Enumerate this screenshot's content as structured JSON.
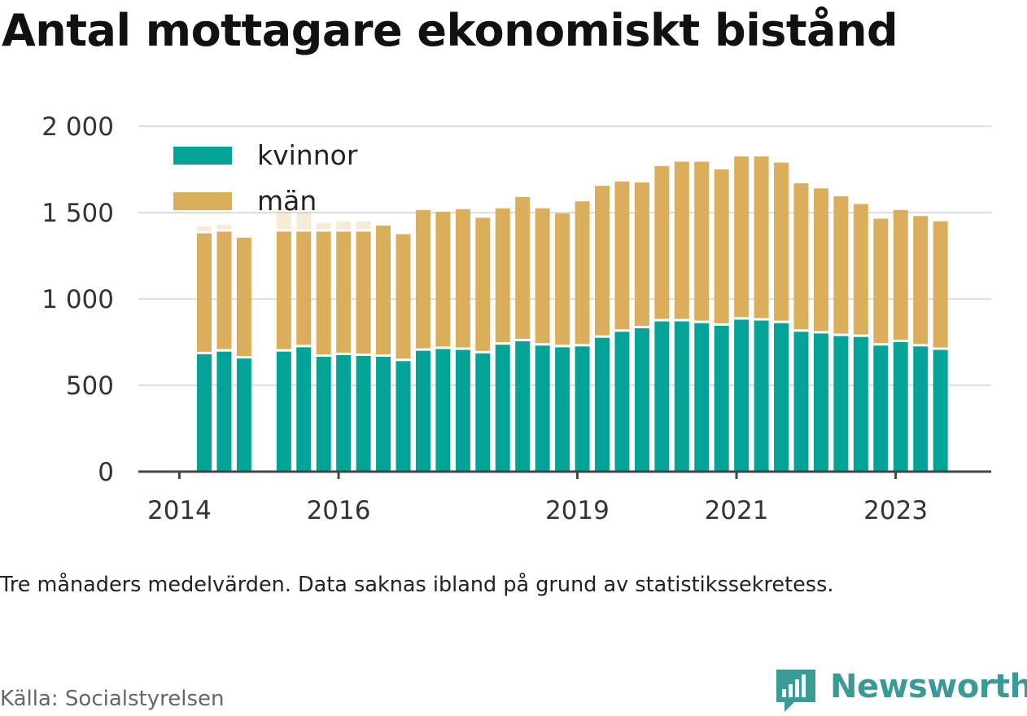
{
  "title": "Antal mottagare ekonomiskt bistånd",
  "note": "Tre månaders medelvärden. Data saknas ibland på grund av statistikssekretess.",
  "source": "Källa: Socialstyrelsen",
  "brand": "Newsworthy",
  "colors": {
    "kvinnor": "#04a397",
    "man": "#dbae5c",
    "grid": "#dddddd",
    "axis": "#444444",
    "brand": "#3a9a95"
  },
  "chart_data": {
    "type": "bar",
    "stacked": true,
    "title": "Antal mottagare ekonomiskt bistånd",
    "ylim": [
      0,
      2000
    ],
    "yticks": [
      0,
      500,
      1000,
      1500,
      2000
    ],
    "ytick_labels": [
      "0",
      "500",
      "1 000",
      "1 500",
      "2 000"
    ],
    "xticks": [
      {
        "label": "2014",
        "slot": 0.75
      },
      {
        "label": "2016",
        "slot": 8.75
      },
      {
        "label": "2019",
        "slot": 20.75
      },
      {
        "label": "2021",
        "slot": 28.75
      },
      {
        "label": "2023",
        "slot": 36.75
      }
    ],
    "legend": {
      "position": "top-left"
    },
    "grid": true,
    "series": [
      {
        "name": "kvinnor",
        "key": "kvinnor"
      },
      {
        "name": "män",
        "key": "man"
      }
    ],
    "bars": [
      {
        "slot": 2,
        "kvinnor": 680,
        "man": 700,
        "faded_extra": 40
      },
      {
        "slot": 3,
        "kvinnor": 695,
        "man": 695,
        "faded_extra": 40
      },
      {
        "slot": 4,
        "kvinnor": 655,
        "man": 700
      },
      {
        "slot": 6,
        "kvinnor": 695,
        "man": 695,
        "faded_extra": 130
      },
      {
        "slot": 7,
        "kvinnor": 720,
        "man": 670,
        "faded_extra": 130
      },
      {
        "slot": 8,
        "kvinnor": 665,
        "man": 725,
        "faded_extra": 50
      },
      {
        "slot": 9,
        "kvinnor": 675,
        "man": 715,
        "faded_extra": 60
      },
      {
        "slot": 10,
        "kvinnor": 670,
        "man": 720,
        "faded_extra": 60
      },
      {
        "slot": 11,
        "kvinnor": 665,
        "man": 760
      },
      {
        "slot": 12,
        "kvinnor": 640,
        "man": 735
      },
      {
        "slot": 13,
        "kvinnor": 700,
        "man": 815
      },
      {
        "slot": 14,
        "kvinnor": 710,
        "man": 795
      },
      {
        "slot": 15,
        "kvinnor": 705,
        "man": 815
      },
      {
        "slot": 16,
        "kvinnor": 685,
        "man": 785
      },
      {
        "slot": 17,
        "kvinnor": 735,
        "man": 790
      },
      {
        "slot": 18,
        "kvinnor": 755,
        "man": 835
      },
      {
        "slot": 19,
        "kvinnor": 730,
        "man": 795
      },
      {
        "slot": 20,
        "kvinnor": 720,
        "man": 775
      },
      {
        "slot": 21,
        "kvinnor": 725,
        "man": 840
      },
      {
        "slot": 22,
        "kvinnor": 775,
        "man": 880
      },
      {
        "slot": 23,
        "kvinnor": 810,
        "man": 870
      },
      {
        "slot": 24,
        "kvinnor": 830,
        "man": 845
      },
      {
        "slot": 25,
        "kvinnor": 870,
        "man": 900
      },
      {
        "slot": 26,
        "kvinnor": 870,
        "man": 925
      },
      {
        "slot": 27,
        "kvinnor": 860,
        "man": 935
      },
      {
        "slot": 28,
        "kvinnor": 845,
        "man": 905
      },
      {
        "slot": 29,
        "kvinnor": 880,
        "man": 945
      },
      {
        "slot": 30,
        "kvinnor": 875,
        "man": 950
      },
      {
        "slot": 31,
        "kvinnor": 860,
        "man": 930
      },
      {
        "slot": 32,
        "kvinnor": 810,
        "man": 860
      },
      {
        "slot": 33,
        "kvinnor": 800,
        "man": 840
      },
      {
        "slot": 34,
        "kvinnor": 785,
        "man": 810
      },
      {
        "slot": 35,
        "kvinnor": 780,
        "man": 770
      },
      {
        "slot": 36,
        "kvinnor": 730,
        "man": 735
      },
      {
        "slot": 37,
        "kvinnor": 750,
        "man": 765
      },
      {
        "slot": 38,
        "kvinnor": 725,
        "man": 755
      },
      {
        "slot": 39,
        "kvinnor": 705,
        "man": 745
      }
    ]
  }
}
